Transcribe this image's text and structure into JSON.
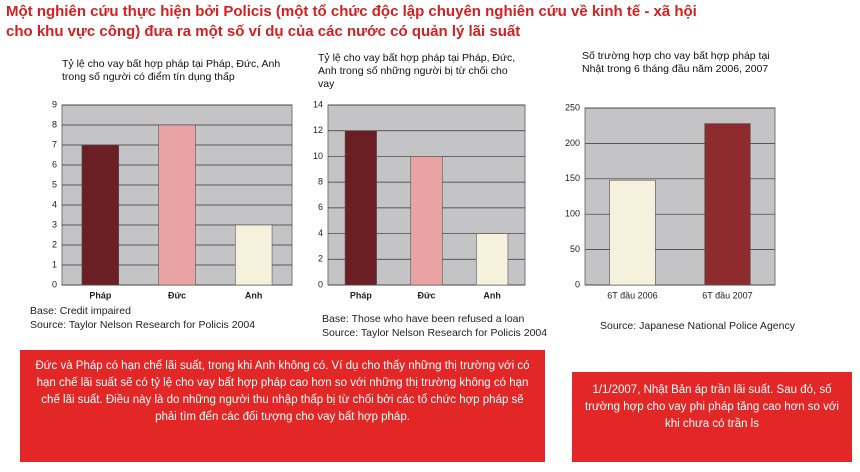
{
  "header": {
    "title": "Một nghiên cứu thực hiện bởi Policis (một tổ chức độc lập chuyên nghiên cứu về kinh tế - xã hội cho khu vực công) đưa ra một số ví dụ của các nước có quản lý lãi suất"
  },
  "chart_data": [
    {
      "type": "bar",
      "title": "Tỷ lệ cho vay bất hợp pháp tại Pháp, Đức, Anh trong số người có điểm tín dụng thấp",
      "categories": [
        "Pháp",
        "Đức",
        "Anh"
      ],
      "values": [
        7,
        8,
        3
      ],
      "colors": [
        "#6b1e24",
        "#e9a3a3",
        "#f6f1dd"
      ],
      "ylim": [
        0,
        9
      ],
      "yticks": [
        0,
        1,
        2,
        3,
        4,
        5,
        6,
        7,
        8,
        9
      ],
      "grid": true,
      "notes": [
        "Base: Credit impaired",
        "Source: Taylor Nelson Research for Policis 2004"
      ]
    },
    {
      "type": "bar",
      "title": "Tỷ lệ cho vay bất hợp pháp tại Pháp, Đức, Anh trong số những người bị từ chối cho vay",
      "categories": [
        "Pháp",
        "Đức",
        "Anh"
      ],
      "values": [
        12,
        10,
        4
      ],
      "colors": [
        "#6b1e24",
        "#e9a3a3",
        "#f6f1dd"
      ],
      "ylim": [
        0,
        14
      ],
      "yticks": [
        0,
        2,
        4,
        6,
        8,
        10,
        12,
        14
      ],
      "grid": true,
      "notes": [
        "Base: Those who have been refused a loan",
        "Source: Taylor Nelson Research for Policis 2004"
      ]
    },
    {
      "type": "bar",
      "title": "Số trường hợp cho vay bất hợp pháp tại Nhật trong 6 tháng đầu năm 2006, 2007",
      "categories": [
        "6T đầu 2006",
        "6T đầu 2007"
      ],
      "values": [
        148,
        228
      ],
      "colors": [
        "#f6f1dd",
        "#8e2b2d"
      ],
      "ylim": [
        0,
        250
      ],
      "yticks": [
        0,
        50,
        100,
        150,
        200,
        250
      ],
      "grid": true,
      "notes": [
        "Source: Japanese National Police Agency"
      ]
    }
  ],
  "boxes": [
    "Đức và Pháp có hạn chế lãi suất, trong khi Anh không có. Ví dụ cho thấy những thị trường với có hạn chế lãi suất sẽ có tỷ lệ cho vay bất hợp pháp cao hơn so với những thị trường không có hạn chế lãi suất. Điều này là do những người thu nhập thấp bị từ chối bởi các tổ chức hợp pháp sẽ phải tìm đến các đối tượng cho vay bất hợp pháp.",
    "1/1/2007, Nhật Bản áp trần lãi suất. Sau đó, số trường hợp cho vay phi pháp tăng cao hơn so với khi chưa có trần ls"
  ]
}
